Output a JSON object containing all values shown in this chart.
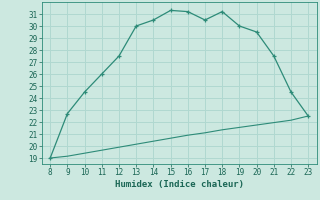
{
  "xlabel": "Humidex (Indice chaleur)",
  "x_main": [
    8,
    9,
    10,
    11,
    12,
    13,
    14,
    15,
    16,
    17,
    18,
    19,
    20,
    21,
    22,
    23
  ],
  "y_main": [
    19,
    22.7,
    24.5,
    26,
    27.5,
    30,
    30.5,
    31.3,
    31.2,
    30.5,
    31.2,
    30,
    29.5,
    27.5,
    24.5,
    22.5
  ],
  "x_bottom": [
    8,
    9,
    10,
    11,
    12,
    13,
    14,
    15,
    16,
    17,
    18,
    19,
    20,
    21,
    22,
    23
  ],
  "y_bottom": [
    19.0,
    19.15,
    19.4,
    19.65,
    19.9,
    20.15,
    20.4,
    20.65,
    20.9,
    21.1,
    21.35,
    21.55,
    21.75,
    21.95,
    22.15,
    22.5
  ],
  "line_color": "#2d8b78",
  "bg_color": "#cce8e0",
  "grid_color": "#b0d8d0",
  "text_color": "#1a6655",
  "xlim": [
    7.5,
    23.5
  ],
  "ylim": [
    18.5,
    32.0
  ],
  "xticks": [
    8,
    9,
    10,
    11,
    12,
    13,
    14,
    15,
    16,
    17,
    18,
    19,
    20,
    21,
    22,
    23
  ],
  "yticks": [
    19,
    20,
    21,
    22,
    23,
    24,
    25,
    26,
    27,
    28,
    29,
    30,
    31
  ]
}
